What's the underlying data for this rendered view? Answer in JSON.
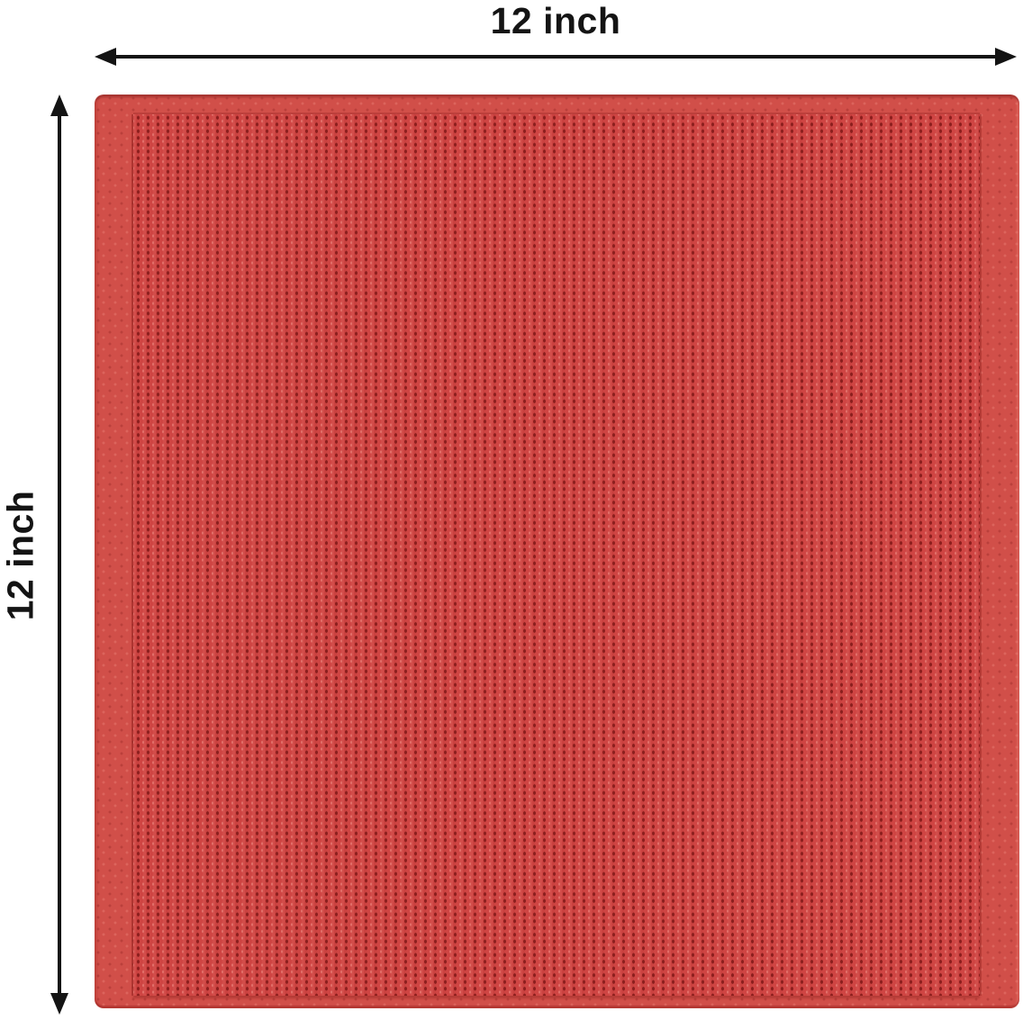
{
  "labels": {
    "width": "12 inch",
    "height": "12 inch"
  },
  "colors": {
    "text-color": "#141414",
    "dim-color": "#141414",
    "fabric-base": "#cf4543",
    "fabric-dot": "#8c1f1e",
    "fabric-dot-light": "#e2706a",
    "fabric-hem": "#d14f49",
    "fabric-edge": "#a63531"
  }
}
